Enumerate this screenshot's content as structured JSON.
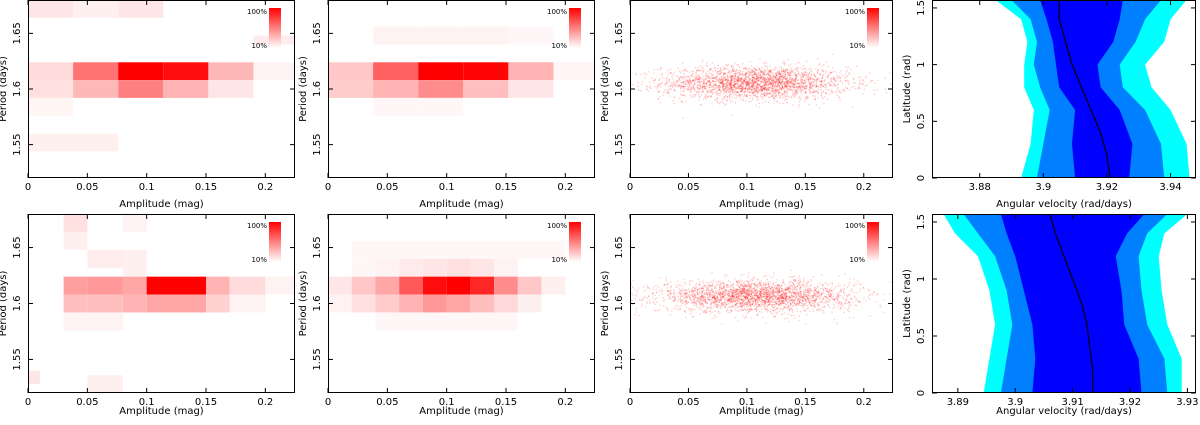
{
  "figure": {
    "legend_max": "100%",
    "legend_min": "10%"
  },
  "chart_data": [
    {
      "id": "p00",
      "type": "heatmap",
      "row": 0,
      "col": 0,
      "title": "",
      "xlabel": "Amplitude (mag)",
      "ylabel": "Period (days)",
      "xlim": [
        0,
        0.225
      ],
      "ylim": [
        1.52,
        1.68
      ],
      "xticks": [
        0,
        0.05,
        0.1,
        0.15,
        0.2
      ],
      "xticklabels": [
        "0",
        "0.05",
        "0.1",
        "0.15",
        "0.2"
      ],
      "yticks": [
        1.55,
        1.6,
        1.65
      ],
      "yticklabels": [
        "1.55",
        "1.6",
        "1.65"
      ],
      "legend": {
        "max": "100%",
        "min": "10%"
      },
      "cells": [
        [
          0.0,
          0.038,
          1.664,
          1.68,
          0.1
        ],
        [
          0.038,
          0.076,
          1.664,
          1.68,
          0.06
        ],
        [
          0.076,
          0.114,
          1.664,
          1.68,
          0.1
        ],
        [
          0.19,
          0.228,
          1.64,
          1.648,
          0.08
        ],
        [
          0.0,
          0.038,
          1.608,
          1.624,
          0.14
        ],
        [
          0.038,
          0.076,
          1.608,
          1.624,
          0.55
        ],
        [
          0.076,
          0.114,
          1.608,
          1.624,
          1.0
        ],
        [
          0.114,
          0.152,
          1.608,
          1.624,
          0.95
        ],
        [
          0.152,
          0.19,
          1.608,
          1.624,
          0.28
        ],
        [
          0.19,
          0.228,
          1.608,
          1.624,
          0.05
        ],
        [
          0.0,
          0.038,
          1.592,
          1.608,
          0.12
        ],
        [
          0.038,
          0.076,
          1.592,
          1.608,
          0.28
        ],
        [
          0.076,
          0.114,
          1.592,
          1.608,
          0.5
        ],
        [
          0.114,
          0.152,
          1.592,
          1.608,
          0.3
        ],
        [
          0.152,
          0.19,
          1.592,
          1.608,
          0.1
        ],
        [
          0.0,
          0.038,
          1.576,
          1.592,
          0.04
        ],
        [
          0.0,
          0.076,
          1.544,
          1.56,
          0.06
        ]
      ]
    },
    {
      "id": "p01",
      "type": "heatmap",
      "row": 0,
      "col": 1,
      "title": "",
      "xlabel": "Amplitude (mag)",
      "ylabel": "Period (days)",
      "xlim": [
        0,
        0.225
      ],
      "ylim": [
        1.52,
        1.68
      ],
      "xticks": [
        0,
        0.05,
        0.1,
        0.15,
        0.2
      ],
      "xticklabels": [
        "0",
        "0.05",
        "0.1",
        "0.15",
        "0.2"
      ],
      "yticks": [
        1.55,
        1.6,
        1.65
      ],
      "yticklabels": [
        "1.55",
        "1.6",
        "1.65"
      ],
      "legend": {
        "max": "100%",
        "min": "10%"
      },
      "cells": [
        [
          0.038,
          0.076,
          1.64,
          1.656,
          0.05
        ],
        [
          0.076,
          0.114,
          1.64,
          1.656,
          0.05
        ],
        [
          0.114,
          0.152,
          1.64,
          1.656,
          0.05
        ],
        [
          0.152,
          0.19,
          1.64,
          1.656,
          0.03
        ],
        [
          0.0,
          0.038,
          1.608,
          1.624,
          0.22
        ],
        [
          0.038,
          0.076,
          1.608,
          1.624,
          0.62
        ],
        [
          0.076,
          0.114,
          1.608,
          1.624,
          1.0
        ],
        [
          0.114,
          0.152,
          1.608,
          1.624,
          0.98
        ],
        [
          0.152,
          0.19,
          1.608,
          1.624,
          0.3
        ],
        [
          0.19,
          0.228,
          1.608,
          1.624,
          0.04
        ],
        [
          0.0,
          0.038,
          1.592,
          1.608,
          0.2
        ],
        [
          0.038,
          0.076,
          1.592,
          1.608,
          0.3
        ],
        [
          0.076,
          0.114,
          1.592,
          1.608,
          0.45
        ],
        [
          0.114,
          0.152,
          1.592,
          1.608,
          0.25
        ],
        [
          0.152,
          0.19,
          1.592,
          1.608,
          0.1
        ],
        [
          0.038,
          0.076,
          1.576,
          1.592,
          0.03
        ],
        [
          0.076,
          0.114,
          1.576,
          1.592,
          0.03
        ]
      ]
    },
    {
      "id": "p02",
      "type": "scatter",
      "row": 0,
      "col": 2,
      "title": "",
      "xlabel": "Amplitude (mag)",
      "ylabel": "Period (days)",
      "xlim": [
        0,
        0.225
      ],
      "ylim": [
        1.52,
        1.68
      ],
      "xticks": [
        0,
        0.05,
        0.1,
        0.15,
        0.2
      ],
      "xticklabels": [
        "0",
        "0.05",
        "0.1",
        "0.15",
        "0.2"
      ],
      "yticks": [
        1.55,
        1.6,
        1.65
      ],
      "yticklabels": [
        "1.55",
        "1.6",
        "1.65"
      ],
      "legend": {
        "max": "100%",
        "min": "10%"
      },
      "density": {
        "mean_x": 0.107,
        "sd_x": 0.04,
        "mean_y": 1.606,
        "sd_y": 0.0075
      }
    },
    {
      "id": "p03",
      "type": "area",
      "row": 0,
      "col": 3,
      "title": "",
      "xlabel": "Angular velocity (rad/days)",
      "ylabel": "Latitude (rad)",
      "xlim": [
        3.865,
        3.948
      ],
      "ylim": [
        0,
        1.57
      ],
      "xticks": [
        3.88,
        3.9,
        3.92,
        3.94
      ],
      "xticklabels": [
        "3.88",
        "3.9",
        "3.92",
        "3.94"
      ],
      "yticks": [
        0,
        0.5,
        1,
        1.5
      ],
      "yticklabels": [
        "0",
        "0.5",
        "1",
        "1.5"
      ],
      "series": [
        {
          "name": "outer band",
          "color": "#00ffff",
          "lat": [
            0,
            0.3,
            0.6,
            0.8,
            1.0,
            1.2,
            1.4,
            1.57
          ],
          "left": [
            3.893,
            3.896,
            3.897,
            3.894,
            3.894,
            3.895,
            3.893,
            3.885
          ],
          "right": [
            3.946,
            3.945,
            3.94,
            3.934,
            3.932,
            3.938,
            3.94,
            3.945
          ]
        },
        {
          "name": "middle band",
          "color": "#0080ff",
          "lat": [
            0,
            0.3,
            0.6,
            0.8,
            1.0,
            1.2,
            1.4,
            1.57
          ],
          "left": [
            3.898,
            3.9,
            3.902,
            3.899,
            3.897,
            3.898,
            3.896,
            3.89
          ],
          "right": [
            3.938,
            3.937,
            3.932,
            3.925,
            3.924,
            3.929,
            3.932,
            3.937
          ]
        },
        {
          "name": "inner band",
          "color": "#0000ff",
          "lat": [
            0,
            0.3,
            0.6,
            0.8,
            1.0,
            1.2,
            1.4,
            1.57
          ],
          "left": [
            3.91,
            3.909,
            3.91,
            3.905,
            3.904,
            3.903,
            3.901,
            3.899
          ],
          "right": [
            3.927,
            3.928,
            3.924,
            3.918,
            3.917,
            3.922,
            3.924,
            3.925
          ]
        },
        {
          "name": "median",
          "color": "#000000",
          "lat": [
            0,
            0.2,
            0.4,
            0.6,
            0.8,
            1.0,
            1.2,
            1.4,
            1.57
          ],
          "x": [
            3.921,
            3.92,
            3.918,
            3.915,
            3.912,
            3.909,
            3.907,
            3.905,
            3.905
          ]
        }
      ]
    },
    {
      "id": "p10",
      "type": "heatmap",
      "row": 1,
      "col": 0,
      "title": "",
      "xlabel": "Amplitude (mag)",
      "ylabel": "Period (days)",
      "xlim": [
        0,
        0.225
      ],
      "ylim": [
        1.52,
        1.68
      ],
      "xticks": [
        0,
        0.05,
        0.1,
        0.15,
        0.2
      ],
      "xticklabels": [
        "0",
        "0.05",
        "0.1",
        "0.15",
        "0.2"
      ],
      "yticks": [
        1.55,
        1.6,
        1.65
      ],
      "yticklabels": [
        "1.55",
        "1.6",
        "1.65"
      ],
      "legend": {
        "max": "100%",
        "min": "10%"
      },
      "cells": [
        [
          0.03,
          0.05,
          1.664,
          1.68,
          0.12
        ],
        [
          0.03,
          0.05,
          1.648,
          1.664,
          0.06
        ],
        [
          0.08,
          0.1,
          1.664,
          1.68,
          0.05
        ],
        [
          0.05,
          0.08,
          1.632,
          1.648,
          0.07
        ],
        [
          0.08,
          0.1,
          1.624,
          1.648,
          0.06
        ],
        [
          0.03,
          0.05,
          1.608,
          1.624,
          0.38
        ],
        [
          0.05,
          0.08,
          1.608,
          1.624,
          0.4
        ],
        [
          0.08,
          0.1,
          1.608,
          1.624,
          0.35
        ],
        [
          0.1,
          0.15,
          1.608,
          1.624,
          1.0
        ],
        [
          0.15,
          0.17,
          1.608,
          1.624,
          0.3
        ],
        [
          0.17,
          0.2,
          1.608,
          1.624,
          0.14
        ],
        [
          0.2,
          0.225,
          1.608,
          1.624,
          0.05
        ],
        [
          0.03,
          0.05,
          1.592,
          1.608,
          0.25
        ],
        [
          0.05,
          0.08,
          1.592,
          1.608,
          0.25
        ],
        [
          0.08,
          0.1,
          1.592,
          1.608,
          0.3
        ],
        [
          0.1,
          0.15,
          1.592,
          1.608,
          0.35
        ],
        [
          0.15,
          0.17,
          1.592,
          1.608,
          0.18
        ],
        [
          0.17,
          0.2,
          1.592,
          1.608,
          0.05
        ],
        [
          0.03,
          0.08,
          1.576,
          1.592,
          0.05
        ],
        [
          0.0,
          0.01,
          1.528,
          1.54,
          0.1
        ],
        [
          0.05,
          0.08,
          1.52,
          1.536,
          0.06
        ]
      ]
    },
    {
      "id": "p11",
      "type": "heatmap",
      "row": 1,
      "col": 1,
      "title": "",
      "xlabel": "Amplitude (mag)",
      "ylabel": "Period (days)",
      "xlim": [
        0,
        0.225
      ],
      "ylim": [
        1.52,
        1.68
      ],
      "xticks": [
        0,
        0.05,
        0.1,
        0.15,
        0.2
      ],
      "xticklabels": [
        "0",
        "0.05",
        "0.1",
        "0.15",
        "0.2"
      ],
      "yticks": [
        1.55,
        1.6,
        1.65
      ],
      "yticklabels": [
        "1.55",
        "1.6",
        "1.65"
      ],
      "legend": {
        "max": "100%",
        "min": "10%"
      },
      "cells": [
        [
          0.02,
          0.2,
          1.64,
          1.656,
          0.03
        ],
        [
          0.02,
          0.04,
          1.624,
          1.64,
          0.03
        ],
        [
          0.04,
          0.06,
          1.624,
          1.64,
          0.05
        ],
        [
          0.06,
          0.08,
          1.624,
          1.64,
          0.08
        ],
        [
          0.08,
          0.1,
          1.624,
          1.64,
          0.1
        ],
        [
          0.1,
          0.12,
          1.624,
          1.64,
          0.12
        ],
        [
          0.12,
          0.14,
          1.624,
          1.64,
          0.1
        ],
        [
          0.14,
          0.16,
          1.624,
          1.64,
          0.05
        ],
        [
          0.0,
          0.02,
          1.608,
          1.624,
          0.1
        ],
        [
          0.02,
          0.04,
          1.608,
          1.624,
          0.22
        ],
        [
          0.04,
          0.06,
          1.608,
          1.624,
          0.35
        ],
        [
          0.06,
          0.08,
          1.608,
          1.624,
          0.65
        ],
        [
          0.08,
          0.1,
          1.608,
          1.624,
          0.95
        ],
        [
          0.1,
          0.12,
          1.608,
          1.624,
          1.0
        ],
        [
          0.12,
          0.14,
          1.608,
          1.624,
          0.85
        ],
        [
          0.14,
          0.16,
          1.608,
          1.624,
          0.45
        ],
        [
          0.16,
          0.18,
          1.608,
          1.624,
          0.22
        ],
        [
          0.18,
          0.2,
          1.608,
          1.624,
          0.06
        ],
        [
          0.0,
          0.02,
          1.592,
          1.608,
          0.05
        ],
        [
          0.02,
          0.04,
          1.592,
          1.608,
          0.12
        ],
        [
          0.04,
          0.06,
          1.592,
          1.608,
          0.2
        ],
        [
          0.06,
          0.08,
          1.592,
          1.608,
          0.3
        ],
        [
          0.08,
          0.1,
          1.592,
          1.608,
          0.4
        ],
        [
          0.1,
          0.12,
          1.592,
          1.608,
          0.35
        ],
        [
          0.12,
          0.14,
          1.592,
          1.608,
          0.25
        ],
        [
          0.14,
          0.16,
          1.592,
          1.608,
          0.15
        ],
        [
          0.16,
          0.18,
          1.592,
          1.608,
          0.06
        ],
        [
          0.04,
          0.16,
          1.576,
          1.592,
          0.03
        ]
      ]
    },
    {
      "id": "p12",
      "type": "scatter",
      "row": 1,
      "col": 2,
      "title": "",
      "xlabel": "Amplitude (mag)",
      "ylabel": "Period (days)",
      "xlim": [
        0,
        0.225
      ],
      "ylim": [
        1.52,
        1.68
      ],
      "xticks": [
        0,
        0.05,
        0.1,
        0.15,
        0.2
      ],
      "xticklabels": [
        "0",
        "0.05",
        "0.1",
        "0.15",
        "0.2"
      ],
      "yticks": [
        1.55,
        1.6,
        1.65
      ],
      "yticklabels": [
        "1.55",
        "1.6",
        "1.65"
      ],
      "legend": {
        "max": "100%",
        "min": "10%"
      },
      "density": {
        "mean_x": 0.107,
        "sd_x": 0.042,
        "mean_y": 1.607,
        "sd_y": 0.007
      }
    },
    {
      "id": "p13",
      "type": "area",
      "row": 1,
      "col": 3,
      "title": "",
      "xlabel": "Angular velocity (rad/days)",
      "ylabel": "Latitude (rad)",
      "xlim": [
        3.8855,
        3.9315
      ],
      "ylim": [
        0,
        1.57
      ],
      "xticks": [
        3.89,
        3.9,
        3.91,
        3.92,
        3.93
      ],
      "xticklabels": [
        "3.89",
        "3.9",
        "3.91",
        "3.92",
        "3.93"
      ],
      "yticks": [
        0,
        0.5,
        1,
        1.5
      ],
      "yticklabels": [
        "0",
        "0.5",
        "1",
        "1.5"
      ],
      "series": [
        {
          "name": "outer band",
          "color": "#00ffff",
          "lat": [
            0,
            0.3,
            0.6,
            0.9,
            1.2,
            1.4,
            1.57
          ],
          "left": [
            3.8945,
            3.8955,
            3.8965,
            3.8955,
            3.8935,
            3.8895,
            3.8875
          ],
          "right": [
            3.929,
            3.929,
            3.9265,
            3.9255,
            3.925,
            3.926,
            3.93
          ]
        },
        {
          "name": "middle band",
          "color": "#0080ff",
          "lat": [
            0,
            0.3,
            0.6,
            0.9,
            1.2,
            1.4,
            1.57
          ],
          "left": [
            3.8975,
            3.8985,
            3.8995,
            3.8985,
            3.8965,
            3.8935,
            3.891
          ],
          "right": [
            3.9265,
            3.926,
            3.923,
            3.922,
            3.9215,
            3.923,
            3.9265
          ]
        },
        {
          "name": "inner band",
          "color": "#0000ff",
          "lat": [
            0,
            0.3,
            0.6,
            0.9,
            1.2,
            1.4,
            1.57
          ],
          "left": [
            3.903,
            3.9035,
            3.903,
            3.9015,
            3.9,
            3.8985,
            3.8975
          ],
          "right": [
            3.922,
            3.9215,
            3.919,
            3.9185,
            3.9175,
            3.9195,
            3.9225
          ]
        },
        {
          "name": "median",
          "color": "#000000",
          "lat": [
            0,
            0.2,
            0.4,
            0.6,
            0.8,
            1.0,
            1.2,
            1.4,
            1.57
          ],
          "x": [
            3.9135,
            3.9135,
            3.913,
            3.9125,
            3.9115,
            3.91,
            3.9085,
            3.907,
            3.906
          ]
        }
      ]
    }
  ]
}
